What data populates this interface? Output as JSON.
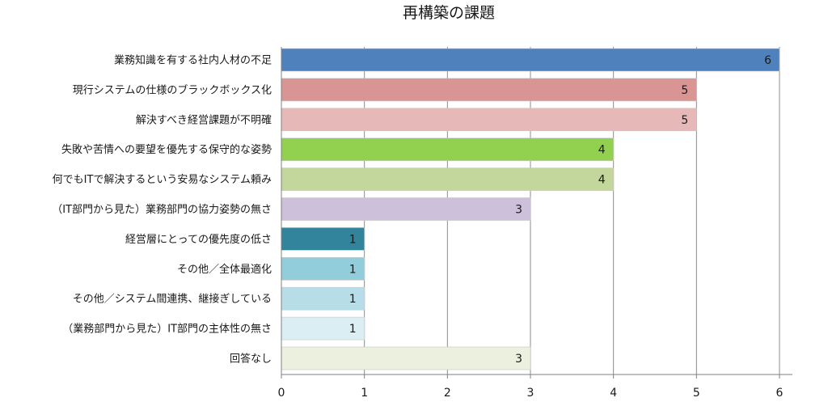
{
  "chart_data": {
    "type": "bar",
    "orientation": "horizontal",
    "title": "再構築の課題",
    "xlabel": "",
    "ylabel": "",
    "xlim": [
      0,
      6
    ],
    "x_ticks": [
      "0",
      "1",
      "2",
      "3",
      "4",
      "5",
      "6"
    ],
    "grid": true,
    "legend": "none",
    "categories": [
      "業務知識を有する社内人材の不足",
      "現行システムの仕様のブラックボックス化",
      "解決すべき経営課題が不明確",
      "失敗や苦情への要望を優先する保守的な姿勢",
      "何でもITで解決するという安易なシステム頼み",
      "（IT部門から見た）業務部門の協力姿勢の無さ",
      "経営層にとっての優先度の低さ",
      "その他／全体最適化",
      "その他／システム間連携、継接ぎしている",
      "（業務部門から見た）IT部門の主体性の無さ",
      "回答なし"
    ],
    "values": [
      6,
      5,
      5,
      4,
      4,
      3,
      1,
      1,
      1,
      1,
      3
    ],
    "value_labels": [
      "6",
      "5",
      "5",
      "4",
      "4",
      "3",
      "1",
      "1",
      "1",
      "1",
      "3"
    ],
    "colors": [
      "#4f81bd",
      "#d99594",
      "#e6b9b8",
      "#92d050",
      "#c3d69b",
      "#ccc0da",
      "#31849b",
      "#92cddc",
      "#b7dee8",
      "#dbeef3",
      "#ebf1de"
    ]
  }
}
